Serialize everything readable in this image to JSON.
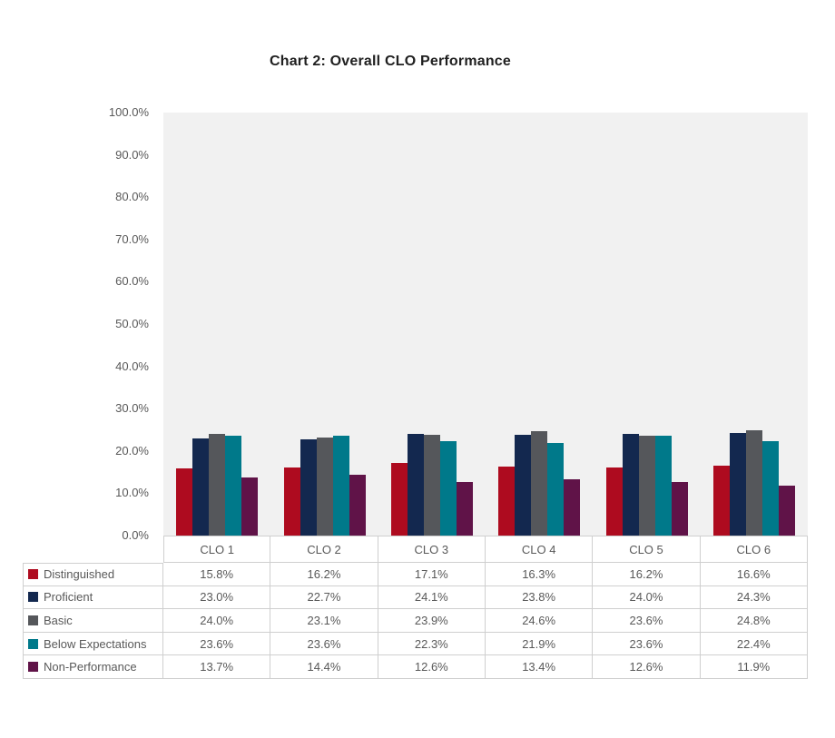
{
  "colors": {
    "plot_background": "#f1f1f1",
    "table_border": "#cfcfcf",
    "axis_text": "#595959",
    "title_text": "#202020",
    "distinguished": "#ae0b1f",
    "proficient": "#13284f",
    "basic": "#55575b",
    "below_expectations": "#00798a",
    "non_performance": "#601348"
  },
  "chart_data": {
    "type": "bar",
    "title": "Chart 2: Overall CLO Performance",
    "categories": [
      "CLO 1",
      "CLO 2",
      "CLO 3",
      "CLO 4",
      "CLO 5",
      "CLO 6"
    ],
    "series": [
      {
        "name": "Distinguished",
        "color": "#ae0b1f",
        "values": [
          15.8,
          16.2,
          17.1,
          16.3,
          16.2,
          16.6
        ]
      },
      {
        "name": "Proficient",
        "color": "#13284f",
        "values": [
          23.0,
          22.7,
          24.1,
          23.8,
          24.0,
          24.3
        ]
      },
      {
        "name": "Basic",
        "color": "#55575b",
        "values": [
          24.0,
          23.1,
          23.9,
          24.6,
          23.6,
          24.8
        ]
      },
      {
        "name": "Below Expectations",
        "color": "#00798a",
        "values": [
          23.6,
          23.6,
          22.3,
          21.9,
          23.6,
          22.4
        ]
      },
      {
        "name": "Non-Performance",
        "color": "#601348",
        "values": [
          13.7,
          14.4,
          12.6,
          13.4,
          12.6,
          11.9
        ]
      }
    ],
    "xlabel": "",
    "ylabel": "",
    "ylim": [
      0,
      100
    ],
    "ytick_step": 10,
    "ytick_format": "percent_one_decimal",
    "grid": false,
    "legend_position": "data-table-left",
    "data_table_shown": true
  }
}
